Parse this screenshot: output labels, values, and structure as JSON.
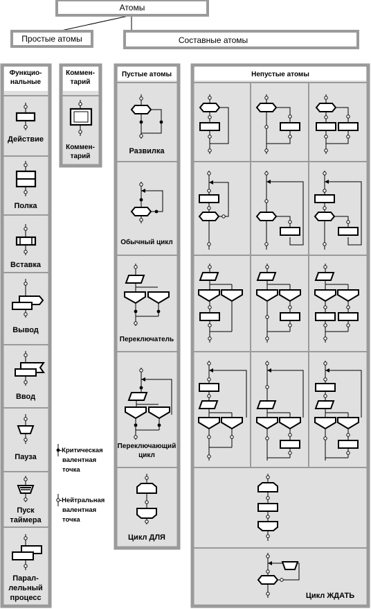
{
  "root_title": "Атомы",
  "simple_atoms": {
    "title": "Простые атомы",
    "functional": {
      "title_lines": [
        "Функцио-",
        "нальные"
      ],
      "items": [
        {
          "label_lines": [
            "Действие"
          ]
        },
        {
          "label_lines": [
            "Полка"
          ]
        },
        {
          "label_lines": [
            "Вставка"
          ]
        },
        {
          "label_lines": [
            "Вывод"
          ]
        },
        {
          "label_lines": [
            "Ввод"
          ]
        },
        {
          "label_lines": [
            "Пауза"
          ]
        },
        {
          "label_lines": [
            "Пуск",
            "таймера"
          ]
        },
        {
          "label_lines": [
            "Парал-",
            "лельный",
            "процесс"
          ]
        }
      ]
    },
    "comment": {
      "title_lines": [
        "Коммен-",
        "тарий"
      ],
      "label_lines": [
        "Коммен-",
        "тарий"
      ]
    }
  },
  "compound_atoms": {
    "title": "Составные атомы",
    "empty": {
      "title": "Пустые атомы",
      "items": [
        {
          "label_lines": [
            "Развилка"
          ]
        },
        {
          "label_lines": [
            "Обычный цикл"
          ]
        },
        {
          "label_lines": [
            "Переключатель"
          ]
        },
        {
          "label_lines": [
            "Переключающий",
            "цикл"
          ]
        },
        {
          "label_lines": [
            "Цикл ДЛЯ"
          ]
        }
      ]
    },
    "nonempty": {
      "title": "Непустые атомы",
      "wait_loop_label": "Цикл ЖДАТЬ"
    }
  },
  "legend": {
    "critical": [
      "-Критическая",
      "валентная",
      "точка"
    ],
    "neutral": [
      "-Нейтральная",
      "валентная",
      "точка"
    ]
  }
}
